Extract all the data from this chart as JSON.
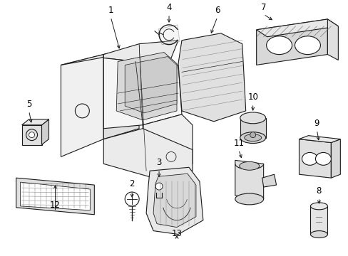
{
  "bg_color": "#ffffff",
  "line_color": "#1a1a1a",
  "gray_light": "#cccccc",
  "gray_mid": "#aaaaaa",
  "gray_dark": "#888888",
  "fig_width": 4.89,
  "fig_height": 3.6,
  "dpi": 100
}
